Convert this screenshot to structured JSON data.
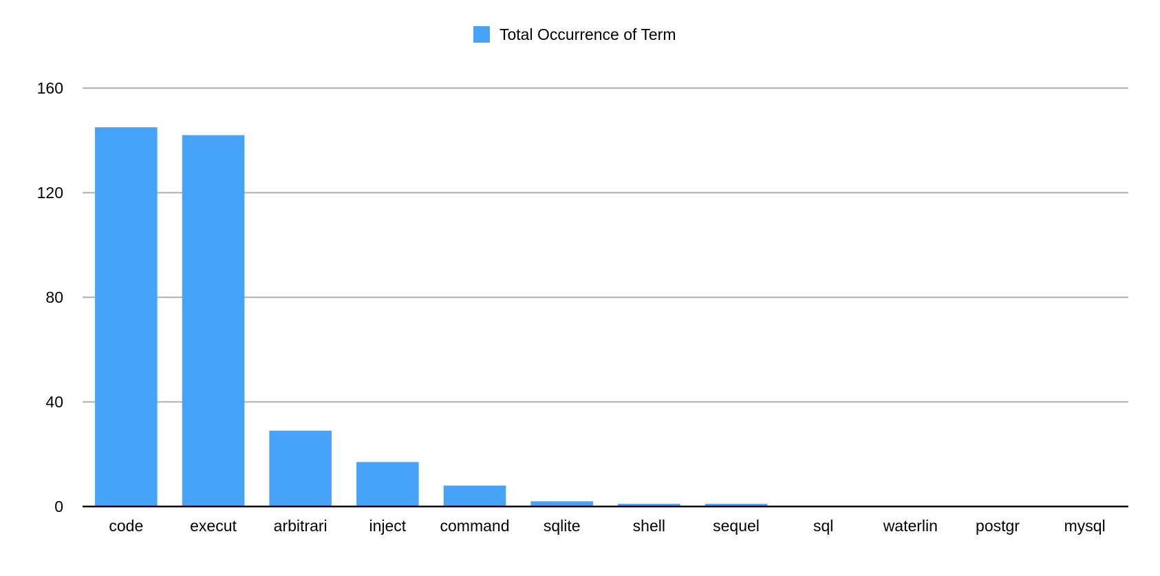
{
  "chart_data": {
    "type": "bar",
    "categories": [
      "code",
      "execut",
      "arbitrari",
      "inject",
      "command",
      "sqlite",
      "shell",
      "sequel",
      "sql",
      "waterlin",
      "postgr",
      "mysql"
    ],
    "series": [
      {
        "name": "Total Occurrence of Term",
        "values": [
          145,
          142,
          29,
          17,
          8,
          2,
          1,
          1,
          0,
          0,
          0,
          0
        ],
        "color": "#47a3f8"
      }
    ],
    "title": "",
    "xlabel": "",
    "ylabel": "",
    "ylim": [
      0,
      160
    ],
    "yticks": [
      "0",
      "40",
      "80",
      "120",
      "160"
    ],
    "grid": true,
    "legend": "top-center",
    "colors": {
      "bar": "#47a3f8",
      "grid": "#bdbdbd",
      "axis": "#000000"
    }
  }
}
